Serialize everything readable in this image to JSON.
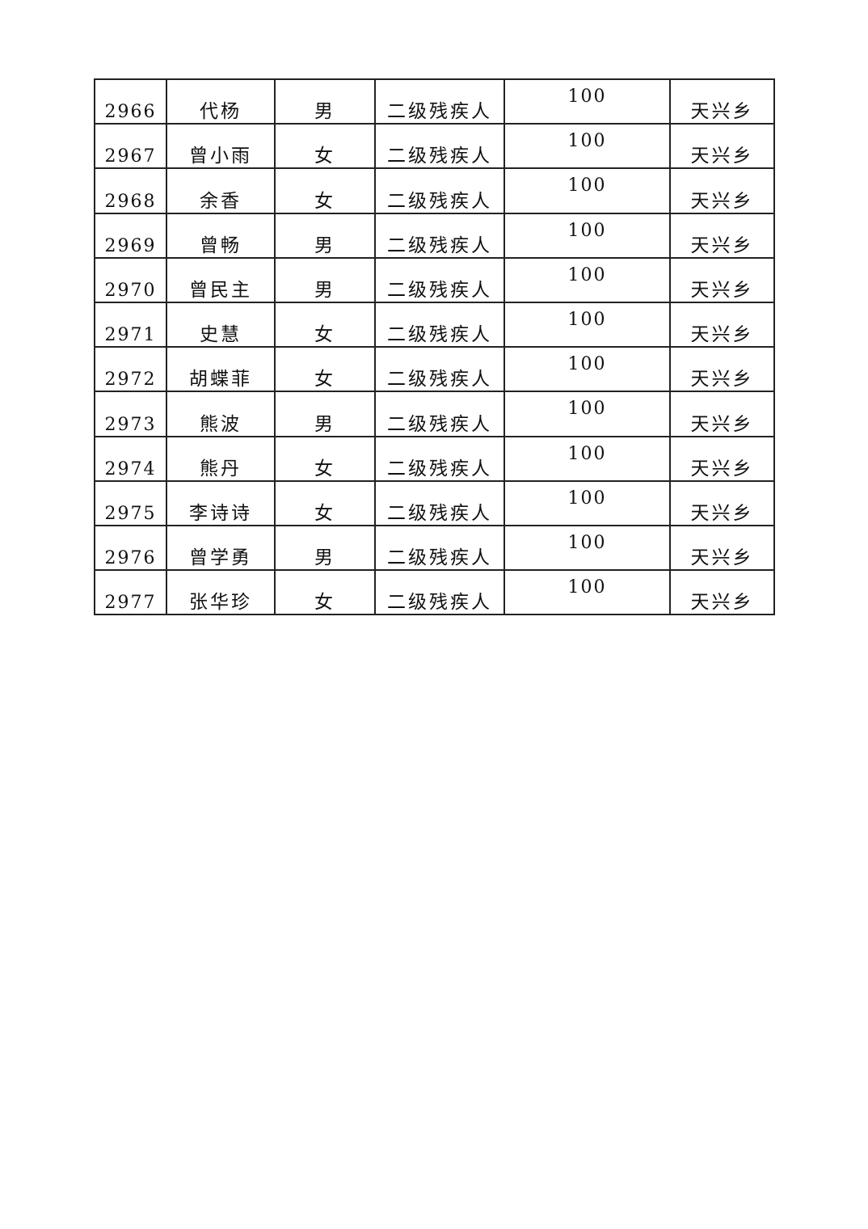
{
  "table": {
    "rows": [
      {
        "id": "2966",
        "name": "代杨",
        "gender": "男",
        "category": "二级残疾人",
        "amount": "100",
        "township": "天兴乡"
      },
      {
        "id": "2967",
        "name": "曾小雨",
        "gender": "女",
        "category": "二级残疾人",
        "amount": "100",
        "township": "天兴乡"
      },
      {
        "id": "2968",
        "name": "余香",
        "gender": "女",
        "category": "二级残疾人",
        "amount": "100",
        "township": "天兴乡"
      },
      {
        "id": "2969",
        "name": "曾畅",
        "gender": "男",
        "category": "二级残疾人",
        "amount": "100",
        "township": "天兴乡"
      },
      {
        "id": "2970",
        "name": "曾民主",
        "gender": "男",
        "category": "二级残疾人",
        "amount": "100",
        "township": "天兴乡"
      },
      {
        "id": "2971",
        "name": "史慧",
        "gender": "女",
        "category": "二级残疾人",
        "amount": "100",
        "township": "天兴乡"
      },
      {
        "id": "2972",
        "name": "胡蝶菲",
        "gender": "女",
        "category": "二级残疾人",
        "amount": "100",
        "township": "天兴乡"
      },
      {
        "id": "2973",
        "name": "熊波",
        "gender": "男",
        "category": "二级残疾人",
        "amount": "100",
        "township": "天兴乡"
      },
      {
        "id": "2974",
        "name": "熊丹",
        "gender": "女",
        "category": "二级残疾人",
        "amount": "100",
        "township": "天兴乡"
      },
      {
        "id": "2975",
        "name": "李诗诗",
        "gender": "女",
        "category": "二级残疾人",
        "amount": "100",
        "township": "天兴乡"
      },
      {
        "id": "2976",
        "name": "曾学勇",
        "gender": "男",
        "category": "二级残疾人",
        "amount": "100",
        "township": "天兴乡"
      },
      {
        "id": "2977",
        "name": "张华珍",
        "gender": "女",
        "category": "二级残疾人",
        "amount": "100",
        "township": "天兴乡"
      }
    ]
  }
}
